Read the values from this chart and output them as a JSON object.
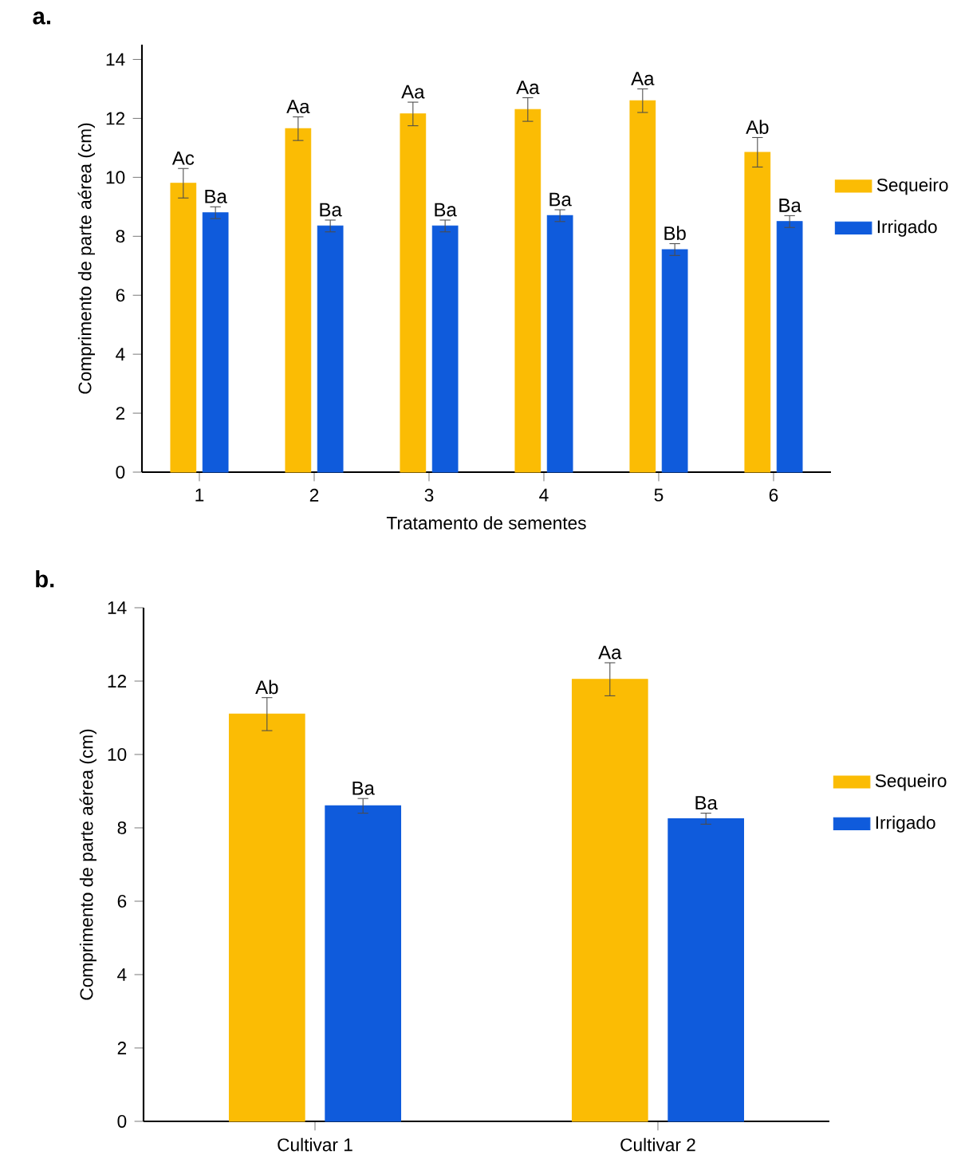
{
  "chart_data": [
    {
      "type": "bar",
      "title": "a.",
      "xlabel": "Tratamento de sementes",
      "ylabel": "Comprimento  de parte aérea  (cm)",
      "categories": [
        "1",
        "2",
        "3",
        "4",
        "5",
        "6"
      ],
      "series": [
        {
          "name": "Sequeiro",
          "color": "#fbbc04",
          "values": [
            9.8,
            11.65,
            12.15,
            12.3,
            12.6,
            10.85
          ],
          "errors": [
            0.5,
            0.4,
            0.4,
            0.4,
            0.4,
            0.5
          ]
        },
        {
          "name": "Irrigado",
          "color": "#0f5bdc",
          "values": [
            8.8,
            8.35,
            8.35,
            8.7,
            7.55,
            8.5
          ],
          "errors": [
            0.2,
            0.2,
            0.2,
            0.2,
            0.2,
            0.2
          ]
        }
      ],
      "ylim": [
        0,
        14.5
      ],
      "yticks": [
        0,
        2,
        4,
        6,
        8,
        10,
        12,
        14
      ],
      "legend": "right",
      "grid": false,
      "annotations": [
        "Ac",
        "Ba",
        "Aa",
        "Ba",
        "Aa",
        "Ba",
        "Aa",
        "Ba",
        "Aa",
        "Bb",
        "Ab",
        "Ba"
      ]
    },
    {
      "type": "bar",
      "title": "b.",
      "ylabel": "Comprimento  de parte aérea  (cm)",
      "categories": [
        "Cultivar 1",
        "Cultivar 2"
      ],
      "series": [
        {
          "name": "Sequeiro",
          "color": "#fbbc04",
          "values": [
            11.1,
            12.05
          ],
          "errors": [
            0.45,
            0.45
          ]
        },
        {
          "name": "Irrigado",
          "color": "#0f5bdc",
          "values": [
            8.6,
            8.25
          ],
          "errors": [
            0.2,
            0.15
          ]
        }
      ],
      "ylim": [
        0,
        14
      ],
      "yticks": [
        0,
        2,
        4,
        6,
        8,
        10,
        12,
        14
      ],
      "legend": "right",
      "grid": false,
      "annotations": [
        "Ab",
        "Ba",
        "Aa",
        "Ba"
      ]
    }
  ]
}
